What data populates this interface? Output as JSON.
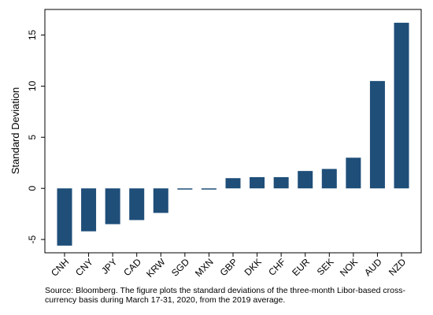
{
  "chart_data": {
    "type": "bar",
    "ylabel": "Standard Deviation",
    "xlabel": "",
    "categories": [
      "CNH",
      "CNY",
      "JPY",
      "CAD",
      "KRW",
      "SGD",
      "MXN",
      "GBP",
      "DKK",
      "CHF",
      "EUR",
      "SEK",
      "NOK",
      "AUD",
      "NZD"
    ],
    "values": [
      -5.6,
      -4.2,
      -3.5,
      -3.1,
      -2.4,
      -0.1,
      -0.1,
      1.0,
      1.1,
      1.1,
      1.7,
      1.9,
      3.0,
      10.5,
      16.2
    ],
    "ylim": [
      -6.3,
      17.5
    ],
    "yticks": [
      -5,
      0,
      5,
      10,
      15
    ],
    "grid": false,
    "bar_color": "#1f4e79"
  },
  "note": "Source: Bloomberg. The figure plots the standard deviations of the three-month Libor-based cross-currency basis during March 17-31, 2020, from the 2019 average."
}
